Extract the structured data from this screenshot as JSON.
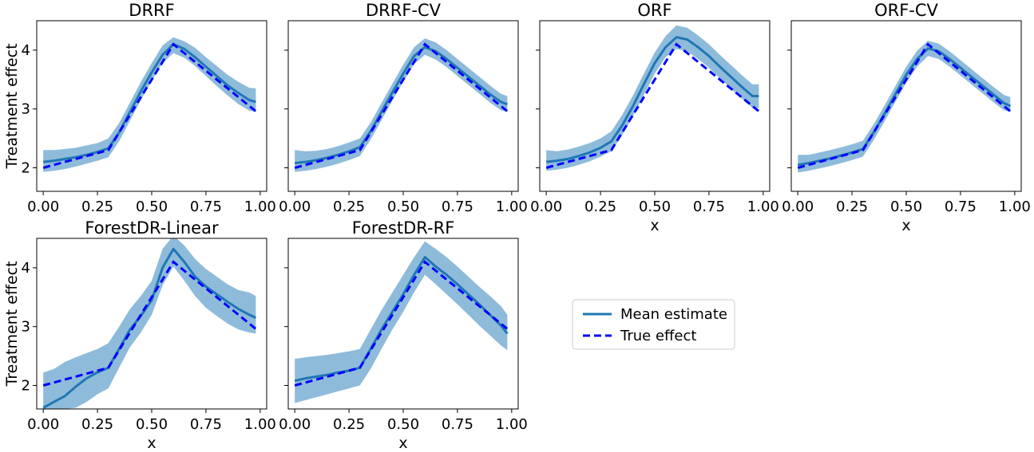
{
  "colors": {
    "mean": "#1f77b4",
    "band": "#8fbbdb",
    "true": "#0000ff"
  },
  "legend": {
    "mean_label": "Mean estimate",
    "true_label": "True effect"
  },
  "chart_data": [
    {
      "type": "line",
      "title": "DRRF",
      "xlabel": "",
      "ylabel": "Treatment effect",
      "xlim": [
        -0.03,
        1.03
      ],
      "ylim": [
        1.6,
        4.5
      ],
      "xticks": [
        "0.00",
        "0.25",
        "0.50",
        "0.75",
        "1.00"
      ],
      "yticks": [
        "2",
        "3",
        "4"
      ],
      "x": [
        0.0,
        0.05,
        0.1,
        0.15,
        0.2,
        0.25,
        0.3,
        0.35,
        0.4,
        0.45,
        0.5,
        0.55,
        0.6,
        0.65,
        0.7,
        0.75,
        0.8,
        0.85,
        0.9,
        0.95,
        0.98
      ],
      "series": [
        {
          "name": "Mean estimate",
          "values": [
            2.1,
            2.12,
            2.15,
            2.18,
            2.22,
            2.27,
            2.33,
            2.6,
            2.95,
            3.3,
            3.62,
            3.92,
            4.1,
            4.02,
            3.88,
            3.72,
            3.56,
            3.4,
            3.27,
            3.15,
            3.12
          ],
          "lower": [
            1.93,
            1.95,
            1.98,
            2.02,
            2.07,
            2.12,
            2.18,
            2.45,
            2.8,
            3.15,
            3.48,
            3.78,
            3.95,
            3.87,
            3.73,
            3.56,
            3.39,
            3.23,
            3.08,
            2.97,
            2.95
          ],
          "upper": [
            2.3,
            2.3,
            2.32,
            2.34,
            2.38,
            2.42,
            2.5,
            2.76,
            3.11,
            3.46,
            3.78,
            4.08,
            4.22,
            4.15,
            4.04,
            3.88,
            3.73,
            3.58,
            3.46,
            3.36,
            3.35
          ]
        },
        {
          "name": "True effect",
          "values": [
            2.0,
            2.05,
            2.1,
            2.15,
            2.2,
            2.25,
            2.3,
            2.6,
            2.9,
            3.2,
            3.5,
            3.8,
            4.1,
            3.95,
            3.8,
            3.65,
            3.5,
            3.35,
            3.2,
            3.05,
            2.96
          ]
        }
      ]
    },
    {
      "type": "line",
      "title": "DRRF-CV",
      "xlabel": "",
      "ylabel": "",
      "xlim": [
        -0.03,
        1.03
      ],
      "ylim": [
        1.6,
        4.5
      ],
      "xticks": [
        "0.00",
        "0.25",
        "0.50",
        "0.75",
        "1.00"
      ],
      "yticks": [
        "2",
        "3",
        "4"
      ],
      "x": [
        0.0,
        0.05,
        0.1,
        0.15,
        0.2,
        0.25,
        0.3,
        0.35,
        0.4,
        0.45,
        0.5,
        0.55,
        0.6,
        0.65,
        0.7,
        0.75,
        0.8,
        0.85,
        0.9,
        0.95,
        0.98
      ],
      "series": [
        {
          "name": "Mean estimate",
          "values": [
            2.08,
            2.1,
            2.13,
            2.17,
            2.22,
            2.28,
            2.35,
            2.62,
            2.95,
            3.28,
            3.6,
            3.9,
            4.05,
            3.98,
            3.85,
            3.7,
            3.55,
            3.4,
            3.25,
            3.12,
            3.08
          ],
          "lower": [
            1.93,
            1.95,
            1.98,
            2.02,
            2.07,
            2.13,
            2.2,
            2.48,
            2.81,
            3.14,
            3.46,
            3.76,
            3.92,
            3.84,
            3.71,
            3.56,
            3.41,
            3.26,
            3.11,
            2.98,
            2.95
          ],
          "upper": [
            2.3,
            2.28,
            2.29,
            2.32,
            2.37,
            2.43,
            2.5,
            2.77,
            3.1,
            3.43,
            3.75,
            4.05,
            4.2,
            4.13,
            4.0,
            3.85,
            3.7,
            3.55,
            3.4,
            3.26,
            3.22
          ]
        },
        {
          "name": "True effect",
          "values": [
            2.0,
            2.05,
            2.1,
            2.15,
            2.2,
            2.25,
            2.3,
            2.6,
            2.9,
            3.2,
            3.5,
            3.8,
            4.1,
            3.95,
            3.8,
            3.65,
            3.5,
            3.35,
            3.2,
            3.05,
            2.96
          ]
        }
      ]
    },
    {
      "type": "line",
      "title": "ORF",
      "xlabel": "x",
      "ylabel": "",
      "xlim": [
        -0.03,
        1.03
      ],
      "ylim": [
        1.6,
        4.5
      ],
      "xticks": [
        "0.00",
        "0.25",
        "0.50",
        "0.75",
        "1.00"
      ],
      "yticks": [
        "2",
        "3",
        "4"
      ],
      "x": [
        0.0,
        0.05,
        0.1,
        0.15,
        0.2,
        0.25,
        0.3,
        0.35,
        0.4,
        0.45,
        0.5,
        0.55,
        0.6,
        0.65,
        0.7,
        0.75,
        0.8,
        0.85,
        0.9,
        0.95,
        0.98
      ],
      "series": [
        {
          "name": "Mean estimate",
          "values": [
            2.1,
            2.12,
            2.15,
            2.2,
            2.26,
            2.34,
            2.45,
            2.72,
            3.05,
            3.42,
            3.78,
            4.05,
            4.22,
            4.18,
            4.05,
            3.9,
            3.72,
            3.55,
            3.38,
            3.22,
            3.22
          ],
          "lower": [
            1.95,
            1.97,
            2.0,
            2.05,
            2.11,
            2.19,
            2.28,
            2.55,
            2.88,
            3.24,
            3.6,
            3.88,
            4.02,
            3.98,
            3.85,
            3.7,
            3.52,
            3.35,
            3.18,
            3.02,
            3.02
          ],
          "upper": [
            2.3,
            2.28,
            2.31,
            2.36,
            2.42,
            2.5,
            2.62,
            2.9,
            3.23,
            3.6,
            3.96,
            4.24,
            4.42,
            4.38,
            4.25,
            4.1,
            3.92,
            3.75,
            3.58,
            3.42,
            3.42
          ]
        },
        {
          "name": "True effect",
          "values": [
            2.0,
            2.05,
            2.1,
            2.15,
            2.2,
            2.25,
            2.3,
            2.6,
            2.9,
            3.2,
            3.5,
            3.8,
            4.1,
            3.95,
            3.8,
            3.65,
            3.5,
            3.35,
            3.2,
            3.05,
            2.96
          ]
        }
      ]
    },
    {
      "type": "line",
      "title": "ORF-CV",
      "xlabel": "x",
      "ylabel": "",
      "xlim": [
        -0.03,
        1.03
      ],
      "ylim": [
        1.6,
        4.5
      ],
      "xticks": [
        "0.00",
        "0.25",
        "0.50",
        "0.75",
        "1.00"
      ],
      "yticks": [
        "2",
        "3",
        "4"
      ],
      "x": [
        0.0,
        0.05,
        0.1,
        0.15,
        0.2,
        0.25,
        0.3,
        0.35,
        0.4,
        0.45,
        0.5,
        0.55,
        0.6,
        0.65,
        0.7,
        0.75,
        0.8,
        0.85,
        0.9,
        0.95,
        0.98
      ],
      "series": [
        {
          "name": "Mean estimate",
          "values": [
            2.05,
            2.08,
            2.12,
            2.16,
            2.21,
            2.26,
            2.32,
            2.6,
            2.92,
            3.25,
            3.58,
            3.85,
            4.03,
            3.98,
            3.85,
            3.7,
            3.55,
            3.4,
            3.25,
            3.1,
            3.05
          ],
          "lower": [
            1.92,
            1.95,
            1.99,
            2.03,
            2.08,
            2.13,
            2.19,
            2.47,
            2.79,
            3.12,
            3.45,
            3.72,
            3.9,
            3.85,
            3.72,
            3.57,
            3.42,
            3.27,
            3.12,
            2.98,
            2.95
          ],
          "upper": [
            2.22,
            2.22,
            2.26,
            2.3,
            2.35,
            2.4,
            2.46,
            2.74,
            3.06,
            3.39,
            3.72,
            3.99,
            4.16,
            4.11,
            3.98,
            3.83,
            3.68,
            3.53,
            3.38,
            3.24,
            3.2
          ]
        },
        {
          "name": "True effect",
          "values": [
            2.0,
            2.05,
            2.1,
            2.15,
            2.2,
            2.25,
            2.3,
            2.6,
            2.9,
            3.2,
            3.5,
            3.8,
            4.1,
            3.95,
            3.8,
            3.65,
            3.5,
            3.35,
            3.2,
            3.05,
            2.96
          ]
        }
      ]
    },
    {
      "type": "line",
      "title": "ForestDR-Linear",
      "xlabel": "x",
      "ylabel": "Treatment effect",
      "xlim": [
        -0.03,
        1.03
      ],
      "ylim": [
        1.6,
        4.5
      ],
      "xticks": [
        "0.00",
        "0.25",
        "0.50",
        "0.75",
        "1.00"
      ],
      "yticks": [
        "2",
        "3",
        "4"
      ],
      "x": [
        0.0,
        0.05,
        0.1,
        0.15,
        0.2,
        0.25,
        0.3,
        0.35,
        0.4,
        0.45,
        0.5,
        0.55,
        0.6,
        0.65,
        0.7,
        0.75,
        0.8,
        0.85,
        0.9,
        0.95,
        0.98
      ],
      "series": [
        {
          "name": "Mean estimate",
          "values": [
            1.62,
            1.72,
            1.82,
            1.98,
            2.12,
            2.22,
            2.3,
            2.62,
            2.95,
            3.18,
            3.45,
            4.0,
            4.32,
            4.1,
            3.85,
            3.68,
            3.55,
            3.42,
            3.3,
            3.2,
            3.15
          ],
          "lower": [
            1.6,
            1.6,
            1.6,
            1.62,
            1.72,
            1.85,
            1.95,
            2.3,
            2.65,
            2.9,
            3.2,
            3.7,
            4.02,
            3.78,
            3.52,
            3.32,
            3.18,
            3.05,
            2.95,
            2.9,
            2.88
          ],
          "upper": [
            2.22,
            2.28,
            2.4,
            2.48,
            2.55,
            2.62,
            2.72,
            3.0,
            3.3,
            3.52,
            3.78,
            4.32,
            4.55,
            4.38,
            4.15,
            3.98,
            3.85,
            3.72,
            3.62,
            3.58,
            3.52
          ]
        },
        {
          "name": "True effect",
          "values": [
            2.0,
            2.05,
            2.1,
            2.15,
            2.2,
            2.25,
            2.3,
            2.6,
            2.9,
            3.2,
            3.5,
            3.8,
            4.1,
            3.95,
            3.8,
            3.65,
            3.5,
            3.35,
            3.2,
            3.05,
            2.96
          ]
        }
      ]
    },
    {
      "type": "line",
      "title": "ForestDR-RF",
      "xlabel": "x",
      "ylabel": "",
      "xlim": [
        -0.03,
        1.03
      ],
      "ylim": [
        1.6,
        4.5
      ],
      "xticks": [
        "0.00",
        "0.25",
        "0.50",
        "0.75",
        "1.00"
      ],
      "yticks": [
        "2",
        "3",
        "4"
      ],
      "x": [
        0.0,
        0.05,
        0.1,
        0.15,
        0.2,
        0.25,
        0.3,
        0.35,
        0.4,
        0.45,
        0.5,
        0.55,
        0.6,
        0.65,
        0.7,
        0.75,
        0.8,
        0.85,
        0.9,
        0.95,
        0.98
      ],
      "series": [
        {
          "name": "Mean estimate",
          "values": [
            2.08,
            2.12,
            2.15,
            2.18,
            2.22,
            2.25,
            2.3,
            2.62,
            2.95,
            3.25,
            3.55,
            3.88,
            4.18,
            4.02,
            3.88,
            3.72,
            3.55,
            3.38,
            3.2,
            3.02,
            2.88
          ],
          "lower": [
            1.7,
            1.75,
            1.8,
            1.85,
            1.9,
            1.95,
            2.0,
            2.28,
            2.62,
            2.95,
            3.25,
            3.58,
            3.88,
            3.72,
            3.55,
            3.38,
            3.2,
            3.02,
            2.85,
            2.68,
            2.6
          ],
          "upper": [
            2.45,
            2.48,
            2.5,
            2.52,
            2.55,
            2.58,
            2.62,
            2.95,
            3.28,
            3.58,
            3.88,
            4.18,
            4.45,
            4.32,
            4.18,
            4.02,
            3.85,
            3.68,
            3.52,
            3.35,
            3.2
          ]
        },
        {
          "name": "True effect",
          "values": [
            2.0,
            2.05,
            2.1,
            2.15,
            2.2,
            2.25,
            2.3,
            2.6,
            2.9,
            3.2,
            3.5,
            3.8,
            4.1,
            3.95,
            3.8,
            3.65,
            3.5,
            3.35,
            3.2,
            3.05,
            2.96
          ]
        }
      ]
    }
  ]
}
